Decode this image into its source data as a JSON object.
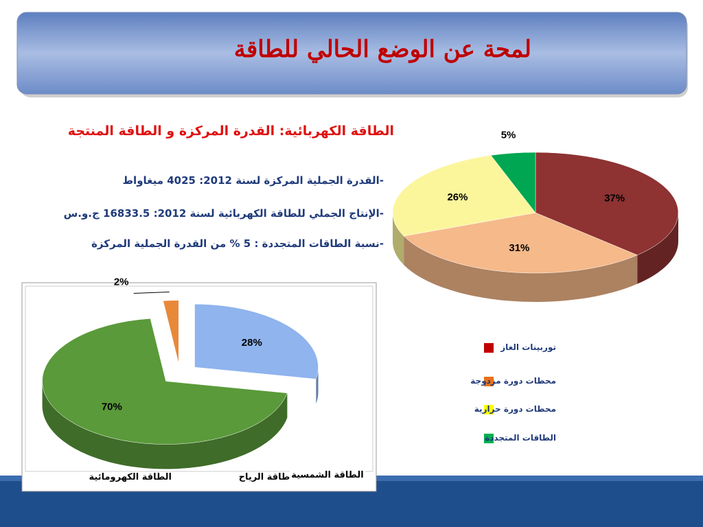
{
  "slide": {
    "title": "لمحة عن الوضع الحالي للطاقة",
    "subtitle": "الطاقة الكهربائية: القدرة المركزة و الطاقة المنتجة",
    "bullets": [
      "-القدرة الجملية المركزة لسنة 2012: 4025 ميغاواط",
      "-الإنتاج الجملي للطاقة الكهربائية لسنة 2012: 16833.5 ج.و.س",
      "-نسبة الطاقات المتجددة : 5 % من القدرة الجملية المركزة"
    ]
  },
  "chart_data": [
    {
      "type": "pie",
      "categories": [
        "توربينات الغاز",
        "محطات دورة مزدوجة",
        "محطات دورة حرارية",
        "الطاقات المتجددة"
      ],
      "values": [
        37,
        31,
        26,
        5
      ],
      "value_labels": [
        "37%",
        "31%",
        "26%",
        "5%"
      ],
      "colors": [
        "#8e3232",
        "#f5b98a",
        "#fbf69c",
        "#00a651"
      ],
      "legend_colors": [
        "#c00000",
        "#e8711a",
        "#ffff00",
        "#00b050"
      ],
      "legend": "right"
    },
    {
      "type": "pie",
      "categories": [
        "طاقة الرياح",
        "الطاقة الكهرومائية",
        "الطاقة الشمسية"
      ],
      "values": [
        28,
        70,
        2
      ],
      "value_labels": [
        "28%",
        "70%",
        "2%"
      ],
      "colors": [
        "#8fb4ee",
        "#5a9a3a",
        "#e8893a"
      ],
      "exploded": true
    }
  ]
}
